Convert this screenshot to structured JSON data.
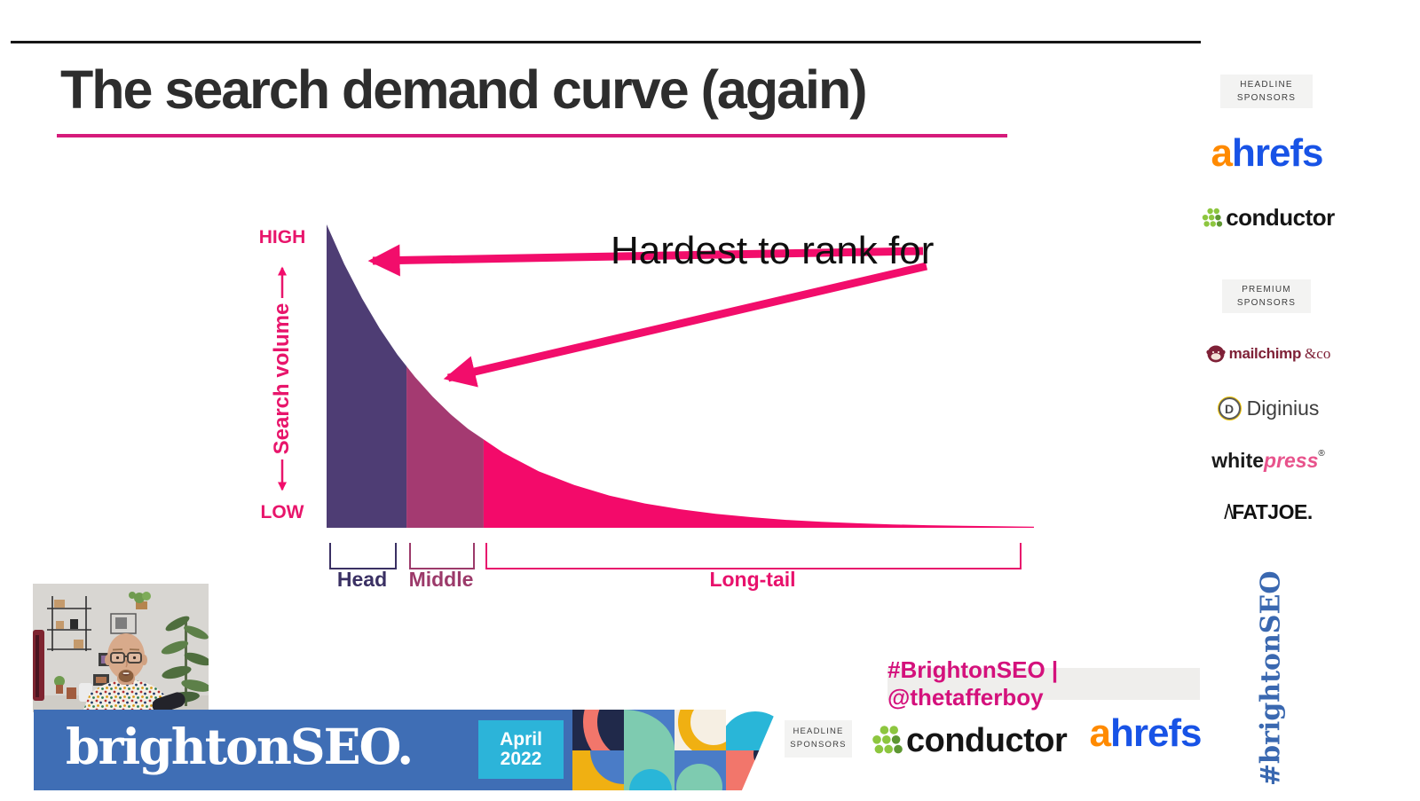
{
  "chart_data": {
    "type": "area",
    "title": "The search demand curve (again)",
    "ylabel": "Search volume",
    "y_axis_top_label": "HIGH",
    "y_axis_bottom_label": "LOW",
    "annotation": "Hardest to rank for",
    "annotation_targets": [
      "Head",
      "Middle"
    ],
    "grid": false,
    "legend": false,
    "segments": [
      {
        "label": "Head",
        "color": "#4E3D74",
        "label_color": "#3A3063",
        "x_share": [
          0,
          0.113
        ]
      },
      {
        "label": "Middle",
        "color": "#A43A71",
        "label_color": "#9C3A6A",
        "x_share": [
          0.113,
          0.222
        ]
      },
      {
        "label": "Long-tail",
        "color": "#F30A6A",
        "label_color": "#E8116C",
        "x_share": [
          0.222,
          1
        ]
      }
    ],
    "curve_points_norm": [
      [
        0,
        1
      ],
      [
        0.025,
        0.869
      ],
      [
        0.05,
        0.756
      ],
      [
        0.075,
        0.657
      ],
      [
        0.1,
        0.571
      ],
      [
        0.125,
        0.497
      ],
      [
        0.15,
        0.432
      ],
      [
        0.175,
        0.375
      ],
      [
        0.2,
        0.326
      ],
      [
        0.25,
        0.247
      ],
      [
        0.3,
        0.186
      ],
      [
        0.35,
        0.141
      ],
      [
        0.4,
        0.106
      ],
      [
        0.45,
        0.08
      ],
      [
        0.5,
        0.061
      ],
      [
        0.55,
        0.046
      ],
      [
        0.6,
        0.035
      ],
      [
        0.65,
        0.026
      ],
      [
        0.7,
        0.02
      ],
      [
        0.75,
        0.015
      ],
      [
        0.8,
        0.011
      ],
      [
        0.85,
        0.0086
      ],
      [
        0.9,
        0.0065
      ],
      [
        0.95,
        0.0049
      ],
      [
        1,
        0.0037
      ]
    ]
  },
  "sponsors": {
    "headline_label": "HEADLINE SPONSORS",
    "premium_label": "PREMIUM SPONSORS",
    "ahrefs": {
      "a": "a",
      "rest": "hrefs",
      "color_a": "#FF8A00",
      "color_rest": "#1853E6"
    },
    "conductor": {
      "name": "conductor",
      "dot_color": "#8DC63F"
    },
    "mailchimp": {
      "name": "mailchimp",
      "suffix": "&co",
      "color": "#7F2137"
    },
    "diginius": {
      "letter": "D",
      "name": "Diginius",
      "icon_color": "#F2C500"
    },
    "whitepress": {
      "white": "white",
      "press": "press",
      "reg": "®",
      "press_color": "#E8538C"
    },
    "fatjoe": {
      "mark": "/\\",
      "name": "FATJOE."
    }
  },
  "footer": {
    "hashtag_badge": "#BrightonSEO | @thetafferboy",
    "brand": "brightonSEO.",
    "date_top": "April",
    "date_bottom": "2022",
    "vertical_hashtag": "#brightonSEO"
  },
  "colors": {
    "accent_pink": "#F20D6B",
    "title_underline": "#D61B7B",
    "axis_pink": "#E8156B",
    "banner_blue": "#3F6EB5",
    "date_cyan": "#2CB4D9",
    "vertical_hashtag_blue": "#3A68B0",
    "badge_text_pink": "#D4117C"
  }
}
